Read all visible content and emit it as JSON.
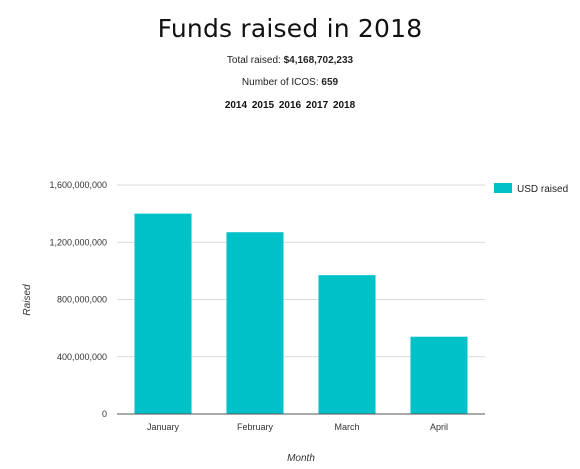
{
  "title": "Funds raised in 2018",
  "total_raised": {
    "label": "Total raised:",
    "value": "$4,168,702,233"
  },
  "icos": {
    "label": "Number of ICOS:",
    "value": "659"
  },
  "years": [
    "2014",
    "2015",
    "2016",
    "2017",
    "2018"
  ],
  "colors": {
    "bar": "#00c0c8",
    "grid": "#d9d9d9",
    "axis": "#555555"
  },
  "chart_data": {
    "type": "bar",
    "categories": [
      "January",
      "February",
      "March",
      "April"
    ],
    "series": [
      {
        "name": "USD raised",
        "values": [
          1400000000,
          1270000000,
          970000000,
          540000000
        ]
      }
    ],
    "ylim": [
      0,
      1600000000
    ],
    "yticks": [
      0,
      400000000,
      800000000,
      1200000000,
      1600000000
    ],
    "ytick_labels": [
      "0",
      "400,000,000",
      "800,000,000",
      "1,200,000,000",
      "1,600,000,000"
    ],
    "xlabel": "Month",
    "ylabel": "Raised",
    "legend_position": "right",
    "grid": true
  }
}
